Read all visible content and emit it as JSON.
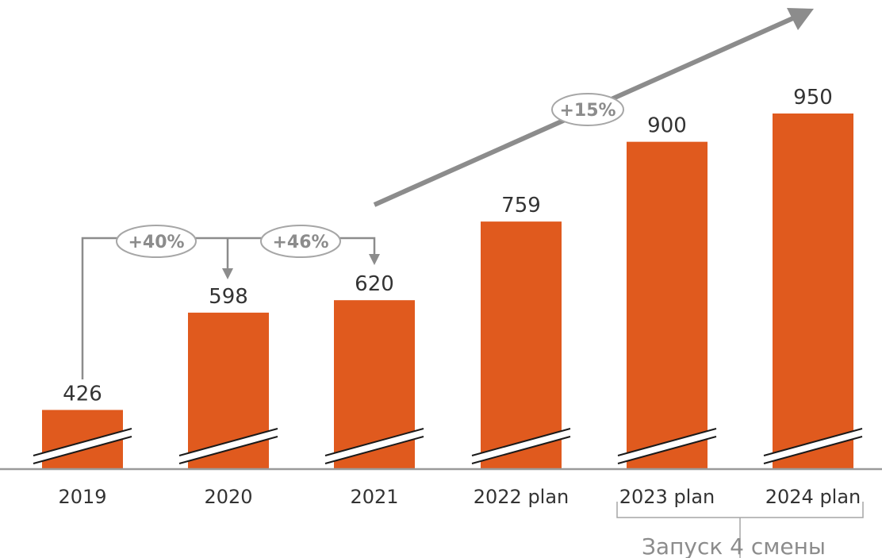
{
  "chart_data": {
    "type": "bar",
    "categories": [
      "2019",
      "2020",
      "2021",
      "2022 plan",
      "2023 plan",
      "2024 plan"
    ],
    "values": [
      426,
      598,
      620,
      759,
      900,
      950
    ],
    "title": "",
    "xlabel": "",
    "ylabel": "",
    "axis_break": true,
    "annotations": {
      "growth_2019_2020": "+40%",
      "growth_2020_2021": "+46%",
      "growth_trend": "+15%",
      "bracket_note": "Запуск 4 смены"
    }
  },
  "colors": {
    "bar": "#e05a1e",
    "annotation": "#8c8c8c",
    "axis": "#9a9a9a",
    "text": "#333333"
  }
}
